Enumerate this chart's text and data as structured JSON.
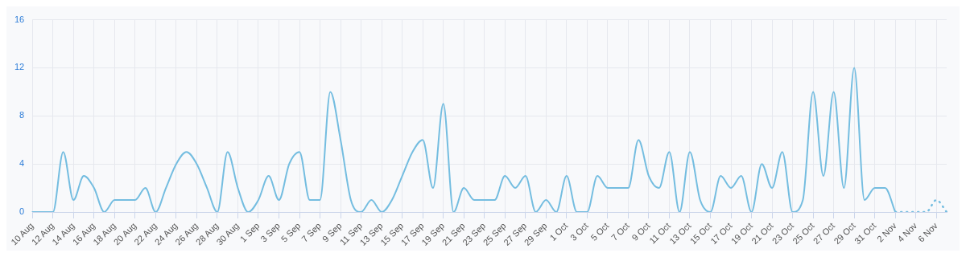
{
  "chart_data": {
    "type": "line",
    "categories": [
      "10 Aug",
      null,
      "12 Aug",
      null,
      "14 Aug",
      null,
      "16 Aug",
      null,
      "18 Aug",
      null,
      "20 Aug",
      null,
      "22 Aug",
      null,
      "24 Aug",
      null,
      "26 Aug",
      null,
      "28 Aug",
      null,
      "30 Aug",
      null,
      "1 Sep",
      null,
      "3 Sep",
      null,
      "5 Sep",
      null,
      "7 Sep",
      null,
      "9 Sep",
      null,
      "11 Sep",
      null,
      "13 Sep",
      null,
      "15 Sep",
      null,
      "17 Sep",
      null,
      "19 Sep",
      null,
      "21 Sep",
      null,
      "23 Sep",
      null,
      "25 Sep",
      null,
      "27 Sep",
      null,
      "29 Sep",
      null,
      "1 Oct",
      null,
      "3 Oct",
      null,
      "5 Oct",
      null,
      "7 Oct",
      null,
      "9 Oct",
      null,
      "11 Oct",
      null,
      "13 Oct",
      null,
      "15 Oct",
      null,
      "17 Oct",
      null,
      "19 Oct",
      null,
      "21 Oct",
      null,
      "23 Oct",
      null,
      "25 Oct",
      null,
      "27 Oct",
      null,
      "29 Oct",
      null,
      "31 Oct",
      null,
      "2 Nov",
      null,
      "4 Nov",
      null,
      "6 Nov",
      null
    ],
    "series": [
      {
        "color": "#74bde0",
        "line_style": "solid",
        "values": [
          0,
          0,
          0,
          5,
          1,
          3,
          2,
          0,
          1,
          1,
          1,
          2,
          0,
          2,
          4,
          5,
          4,
          2,
          0,
          5,
          2,
          0,
          1,
          3,
          1,
          4,
          5,
          1,
          1,
          10,
          6,
          1,
          0,
          1,
          0,
          1,
          3,
          5,
          6,
          2,
          9,
          0,
          2,
          1,
          1,
          1,
          3,
          2,
          3,
          0,
          1,
          0,
          3,
          0,
          0,
          3,
          2,
          2,
          2,
          6,
          3,
          2,
          5,
          0,
          5,
          1,
          0,
          3,
          2,
          3,
          0,
          4,
          2,
          5,
          0,
          1,
          10,
          3,
          10,
          2,
          12,
          1,
          2,
          2,
          0,
          null,
          null,
          null,
          null,
          null
        ]
      },
      {
        "color": "#74bde0",
        "line_style": "dotted",
        "values": [
          null,
          null,
          null,
          null,
          null,
          null,
          null,
          null,
          null,
          null,
          null,
          null,
          null,
          null,
          null,
          null,
          null,
          null,
          null,
          null,
          null,
          null,
          null,
          null,
          null,
          null,
          null,
          null,
          null,
          null,
          null,
          null,
          null,
          null,
          null,
          null,
          null,
          null,
          null,
          null,
          null,
          null,
          null,
          null,
          null,
          null,
          null,
          null,
          null,
          null,
          null,
          null,
          null,
          null,
          null,
          null,
          null,
          null,
          null,
          null,
          null,
          null,
          null,
          null,
          null,
          null,
          null,
          null,
          null,
          null,
          null,
          null,
          null,
          null,
          null,
          null,
          null,
          null,
          null,
          null,
          null,
          null,
          null,
          null,
          0,
          0,
          0,
          0,
          1,
          0
        ]
      }
    ],
    "ylim": [
      0,
      16
    ],
    "yticks": [
      0,
      4,
      8,
      12,
      16
    ],
    "grid": true,
    "marker": "none",
    "legend": false
  }
}
